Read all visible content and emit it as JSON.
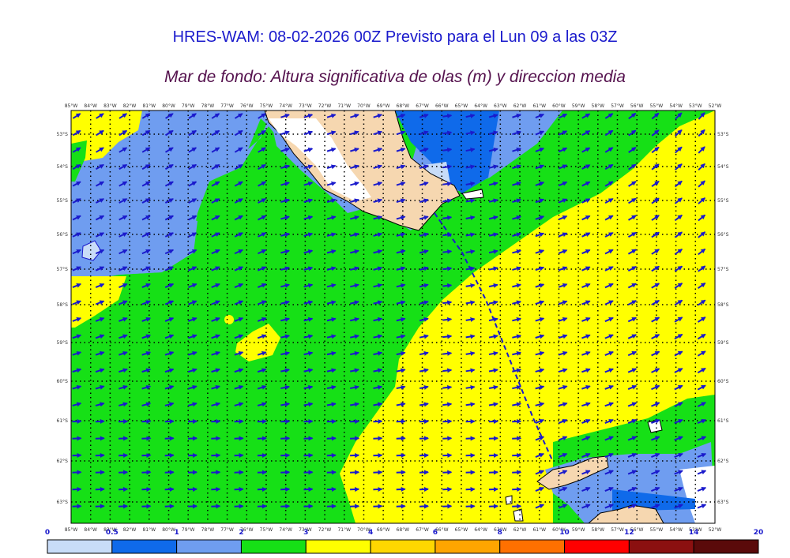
{
  "title": "HRES-WAM: 08-02-2026 00Z Previsto para el Lun 09 a las 03Z",
  "subtitle": "Mar de fondo: Altura significativa de olas (m) y direccion media",
  "colors": {
    "title": "#1a1acc",
    "subtitle": "#55124e",
    "arrow": "#1a1acc",
    "land": "#f6d7b0",
    "grid": "#000000"
  },
  "map": {
    "lon_ticks": [
      "85°W",
      "84°W",
      "83°W",
      "82°W",
      "81°W",
      "80°W",
      "79°W",
      "78°W",
      "77°W",
      "76°W",
      "75°W",
      "74°W",
      "73°W",
      "72°W",
      "71°W",
      "70°W",
      "69°W",
      "68°W",
      "67°W",
      "66°W",
      "65°W",
      "64°W",
      "63°W",
      "62°W",
      "61°W",
      "60°W",
      "59°W",
      "58°W",
      "57°W",
      "56°W",
      "55°W",
      "54°W",
      "53°W",
      "52°W"
    ],
    "lat_ticks": [
      "53°S",
      "54°S",
      "55°S",
      "56°S",
      "57°S",
      "58°S",
      "59°S",
      "60°S",
      "61°S",
      "62°S",
      "63°S"
    ]
  },
  "colorbar": {
    "labels": [
      "0",
      "0.5",
      "1",
      "2",
      "3",
      "4",
      "6",
      "8",
      "10",
      "12",
      "14",
      "20"
    ],
    "colors": [
      "#c8dcf8",
      "#0f6aea",
      "#6f9df0",
      "#16e016",
      "#ffff00",
      "#ffd700",
      "#ffa500",
      "#ff7000",
      "#ff0000",
      "#8b1010",
      "#5a0a0a",
      "#3a3a3a"
    ]
  }
}
